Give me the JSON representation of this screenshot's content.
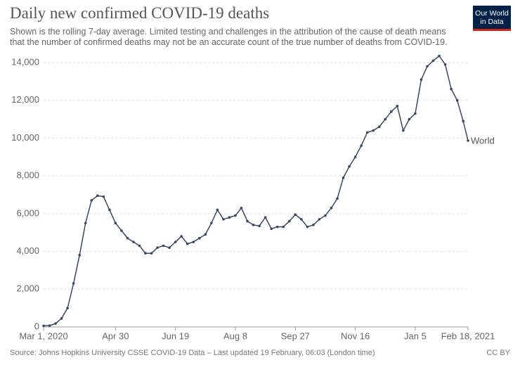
{
  "chart_data": {
    "type": "line",
    "title": "Daily new confirmed COVID-19 deaths",
    "subtitle": "Shown is the rolling 7-day average. Limited testing and challenges in the attribution of the cause of death means that the number of confirmed deaths may not be an accurate count of the true number of deaths from COVID-19.",
    "logo": "Our World in Data",
    "source": "Source: Johns Hopkins University CSSE COVID-19 Data – Last updated 19 February, 06:03 (London time)",
    "license": "CC BY",
    "x": [
      "2020-03-01",
      "2020-03-06",
      "2020-03-11",
      "2020-03-16",
      "2020-03-21",
      "2020-03-26",
      "2020-03-31",
      "2020-04-05",
      "2020-04-10",
      "2020-04-15",
      "2020-04-20",
      "2020-04-25",
      "2020-04-30",
      "2020-05-05",
      "2020-05-10",
      "2020-05-15",
      "2020-05-20",
      "2020-05-25",
      "2020-05-30",
      "2020-06-04",
      "2020-06-09",
      "2020-06-14",
      "2020-06-19",
      "2020-06-24",
      "2020-06-29",
      "2020-07-04",
      "2020-07-09",
      "2020-07-14",
      "2020-07-19",
      "2020-07-24",
      "2020-07-29",
      "2020-08-03",
      "2020-08-08",
      "2020-08-13",
      "2020-08-18",
      "2020-08-23",
      "2020-08-28",
      "2020-09-02",
      "2020-09-07",
      "2020-09-12",
      "2020-09-17",
      "2020-09-22",
      "2020-09-27",
      "2020-10-02",
      "2020-10-07",
      "2020-10-12",
      "2020-10-17",
      "2020-10-22",
      "2020-10-27",
      "2020-11-01",
      "2020-11-06",
      "2020-11-11",
      "2020-11-16",
      "2020-11-21",
      "2020-11-26",
      "2020-12-01",
      "2020-12-06",
      "2020-12-11",
      "2020-12-16",
      "2020-12-21",
      "2020-12-26",
      "2020-12-31",
      "2021-01-05",
      "2021-01-10",
      "2021-01-15",
      "2021-01-20",
      "2021-01-25",
      "2021-01-30",
      "2021-02-04",
      "2021-02-09",
      "2021-02-14",
      "2021-02-18"
    ],
    "series": [
      {
        "name": "World",
        "color": "#3b475e",
        "values": [
          60,
          70,
          180,
          450,
          1000,
          2300,
          3800,
          5500,
          6700,
          6950,
          6900,
          6200,
          5500,
          5100,
          4700,
          4500,
          4300,
          3900,
          3900,
          4200,
          4300,
          4200,
          4500,
          4800,
          4400,
          4500,
          4700,
          4900,
          5500,
          6200,
          5700,
          5800,
          5900,
          6300,
          5600,
          5400,
          5350,
          5800,
          5200,
          5300,
          5300,
          5600,
          5950,
          5700,
          5300,
          5400,
          5700,
          5900,
          6300,
          6800,
          7900,
          8500,
          9000,
          9600,
          10300,
          10400,
          10600,
          11000,
          11400,
          11700,
          10400,
          11000,
          11300,
          13100,
          13800,
          14100,
          14350,
          13900,
          12600,
          12000,
          10900,
          9870
        ]
      }
    ],
    "xlim": [
      "2020-03-01",
      "2021-02-18"
    ],
    "xticks": [
      {
        "value": "2020-03-01",
        "label": "Mar 1, 2020"
      },
      {
        "value": "2020-04-30",
        "label": "Apr 30"
      },
      {
        "value": "2020-06-19",
        "label": "Jun 19"
      },
      {
        "value": "2020-08-08",
        "label": "Aug 8"
      },
      {
        "value": "2020-09-27",
        "label": "Sep 27"
      },
      {
        "value": "2020-11-16",
        "label": "Nov 16"
      },
      {
        "value": "2021-01-05",
        "label": "Jan 5"
      },
      {
        "value": "2021-02-18",
        "label": "Feb 18, 2021"
      }
    ],
    "ylim": [
      0,
      14000
    ],
    "yticks": [
      0,
      {
        "value": 2000,
        "label": "2,000"
      },
      {
        "value": 4000,
        "label": "4,000"
      },
      {
        "value": 6000,
        "label": "6,000"
      },
      {
        "value": 8000,
        "label": "8,000"
      },
      {
        "value": 10000,
        "label": "10,000"
      },
      {
        "value": 12000,
        "label": "12,000"
      },
      {
        "value": 14000,
        "label": "14,000"
      }
    ],
    "grid": true
  }
}
